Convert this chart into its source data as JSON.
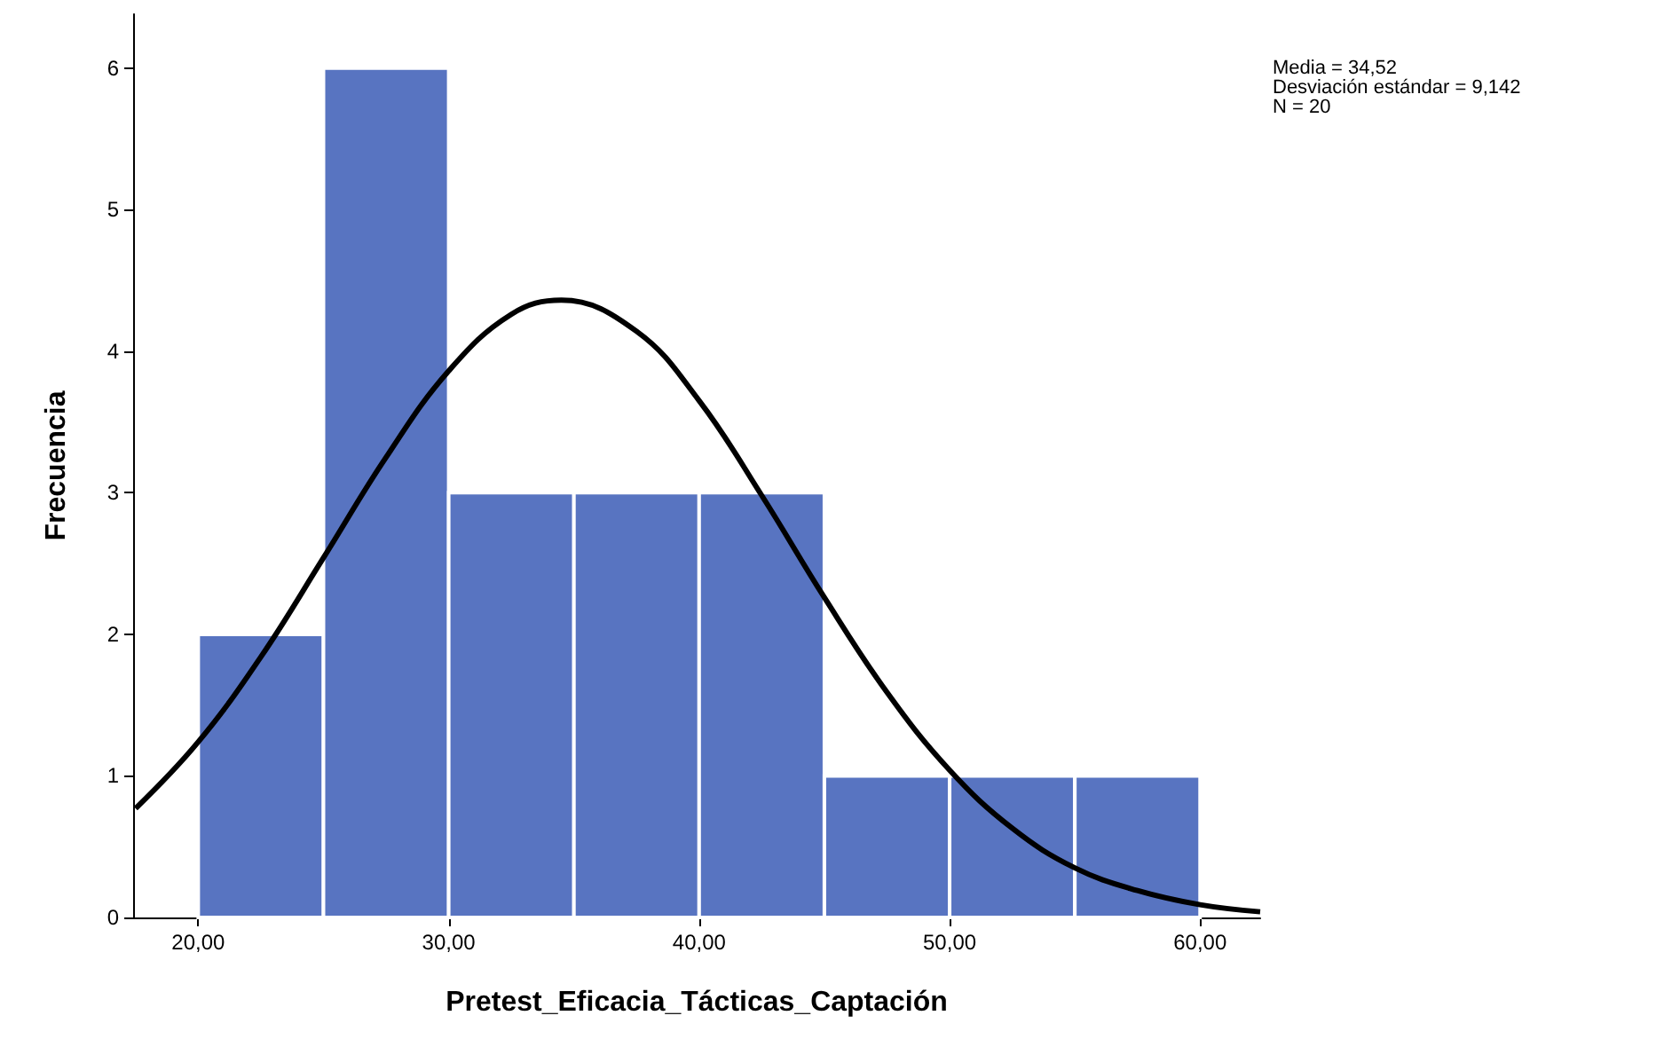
{
  "chart_data": {
    "type": "histogram",
    "xlabel": "Pretest_Eficacia_Tácticas_Captación",
    "ylabel": "Frecuencia",
    "bins": [
      20,
      25,
      30,
      35,
      40,
      45,
      50,
      55,
      60
    ],
    "values": [
      2,
      6,
      3,
      3,
      3,
      1,
      1,
      1
    ],
    "color": "#5874c1",
    "xlim": [
      17.4,
      62.4
    ],
    "xticks": [
      {
        "value": 20,
        "label": "20,00"
      },
      {
        "value": 30,
        "label": "30,00"
      },
      {
        "value": 40,
        "label": "40,00"
      },
      {
        "value": 50,
        "label": "50,00"
      },
      {
        "value": 60,
        "label": "60,00"
      }
    ],
    "ylim": [
      0,
      6.38
    ],
    "yticks": [
      0,
      1,
      2,
      3,
      4,
      5,
      6
    ],
    "grid": false,
    "series": [
      {
        "type": "line",
        "color": "#000000",
        "x": [
          17.5,
          20,
          22.5,
          25,
          27.5,
          30,
          32.5,
          34.5,
          37.5,
          40,
          42.5,
          45,
          47.5,
          50,
          52.5,
          55,
          57.5,
          60,
          62.4
        ],
        "values": [
          0.77,
          1.24,
          1.84,
          2.54,
          3.25,
          3.86,
          4.26,
          4.36,
          4.14,
          3.65,
          2.98,
          2.26,
          1.59,
          1.04,
          0.63,
          0.35,
          0.19,
          0.09,
          0.04
        ]
      }
    ],
    "annotations": [
      "Media = 34,52",
      "Desviación estándar = 9,142",
      "N = 20"
    ]
  }
}
